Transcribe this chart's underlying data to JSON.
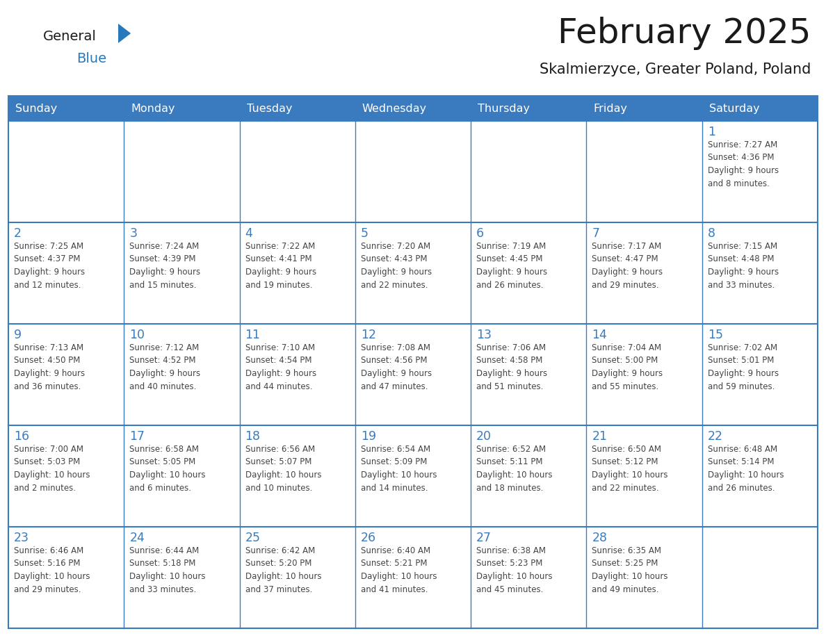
{
  "title": "February 2025",
  "subtitle": "Skalmierzyce, Greater Poland, Poland",
  "header_bg": "#3a7bbf",
  "header_text_color": "#ffffff",
  "cell_bg": "#ffffff",
  "border_color": "#3a7bbf",
  "day_names": [
    "Sunday",
    "Monday",
    "Tuesday",
    "Wednesday",
    "Thursday",
    "Friday",
    "Saturday"
  ],
  "title_color": "#1a1a1a",
  "subtitle_color": "#1a1a1a",
  "day_number_color": "#3a7bbf",
  "cell_text_color": "#444444",
  "logo_general_color": "#1a1a1a",
  "logo_blue_color": "#2878bc",
  "weeks": [
    [
      {
        "day": null,
        "info": null
      },
      {
        "day": null,
        "info": null
      },
      {
        "day": null,
        "info": null
      },
      {
        "day": null,
        "info": null
      },
      {
        "day": null,
        "info": null
      },
      {
        "day": null,
        "info": null
      },
      {
        "day": 1,
        "info": "Sunrise: 7:27 AM\nSunset: 4:36 PM\nDaylight: 9 hours\nand 8 minutes."
      }
    ],
    [
      {
        "day": 2,
        "info": "Sunrise: 7:25 AM\nSunset: 4:37 PM\nDaylight: 9 hours\nand 12 minutes."
      },
      {
        "day": 3,
        "info": "Sunrise: 7:24 AM\nSunset: 4:39 PM\nDaylight: 9 hours\nand 15 minutes."
      },
      {
        "day": 4,
        "info": "Sunrise: 7:22 AM\nSunset: 4:41 PM\nDaylight: 9 hours\nand 19 minutes."
      },
      {
        "day": 5,
        "info": "Sunrise: 7:20 AM\nSunset: 4:43 PM\nDaylight: 9 hours\nand 22 minutes."
      },
      {
        "day": 6,
        "info": "Sunrise: 7:19 AM\nSunset: 4:45 PM\nDaylight: 9 hours\nand 26 minutes."
      },
      {
        "day": 7,
        "info": "Sunrise: 7:17 AM\nSunset: 4:47 PM\nDaylight: 9 hours\nand 29 minutes."
      },
      {
        "day": 8,
        "info": "Sunrise: 7:15 AM\nSunset: 4:48 PM\nDaylight: 9 hours\nand 33 minutes."
      }
    ],
    [
      {
        "day": 9,
        "info": "Sunrise: 7:13 AM\nSunset: 4:50 PM\nDaylight: 9 hours\nand 36 minutes."
      },
      {
        "day": 10,
        "info": "Sunrise: 7:12 AM\nSunset: 4:52 PM\nDaylight: 9 hours\nand 40 minutes."
      },
      {
        "day": 11,
        "info": "Sunrise: 7:10 AM\nSunset: 4:54 PM\nDaylight: 9 hours\nand 44 minutes."
      },
      {
        "day": 12,
        "info": "Sunrise: 7:08 AM\nSunset: 4:56 PM\nDaylight: 9 hours\nand 47 minutes."
      },
      {
        "day": 13,
        "info": "Sunrise: 7:06 AM\nSunset: 4:58 PM\nDaylight: 9 hours\nand 51 minutes."
      },
      {
        "day": 14,
        "info": "Sunrise: 7:04 AM\nSunset: 5:00 PM\nDaylight: 9 hours\nand 55 minutes."
      },
      {
        "day": 15,
        "info": "Sunrise: 7:02 AM\nSunset: 5:01 PM\nDaylight: 9 hours\nand 59 minutes."
      }
    ],
    [
      {
        "day": 16,
        "info": "Sunrise: 7:00 AM\nSunset: 5:03 PM\nDaylight: 10 hours\nand 2 minutes."
      },
      {
        "day": 17,
        "info": "Sunrise: 6:58 AM\nSunset: 5:05 PM\nDaylight: 10 hours\nand 6 minutes."
      },
      {
        "day": 18,
        "info": "Sunrise: 6:56 AM\nSunset: 5:07 PM\nDaylight: 10 hours\nand 10 minutes."
      },
      {
        "day": 19,
        "info": "Sunrise: 6:54 AM\nSunset: 5:09 PM\nDaylight: 10 hours\nand 14 minutes."
      },
      {
        "day": 20,
        "info": "Sunrise: 6:52 AM\nSunset: 5:11 PM\nDaylight: 10 hours\nand 18 minutes."
      },
      {
        "day": 21,
        "info": "Sunrise: 6:50 AM\nSunset: 5:12 PM\nDaylight: 10 hours\nand 22 minutes."
      },
      {
        "day": 22,
        "info": "Sunrise: 6:48 AM\nSunset: 5:14 PM\nDaylight: 10 hours\nand 26 minutes."
      }
    ],
    [
      {
        "day": 23,
        "info": "Sunrise: 6:46 AM\nSunset: 5:16 PM\nDaylight: 10 hours\nand 29 minutes."
      },
      {
        "day": 24,
        "info": "Sunrise: 6:44 AM\nSunset: 5:18 PM\nDaylight: 10 hours\nand 33 minutes."
      },
      {
        "day": 25,
        "info": "Sunrise: 6:42 AM\nSunset: 5:20 PM\nDaylight: 10 hours\nand 37 minutes."
      },
      {
        "day": 26,
        "info": "Sunrise: 6:40 AM\nSunset: 5:21 PM\nDaylight: 10 hours\nand 41 minutes."
      },
      {
        "day": 27,
        "info": "Sunrise: 6:38 AM\nSunset: 5:23 PM\nDaylight: 10 hours\nand 45 minutes."
      },
      {
        "day": 28,
        "info": "Sunrise: 6:35 AM\nSunset: 5:25 PM\nDaylight: 10 hours\nand 49 minutes."
      },
      {
        "day": null,
        "info": null
      }
    ]
  ]
}
